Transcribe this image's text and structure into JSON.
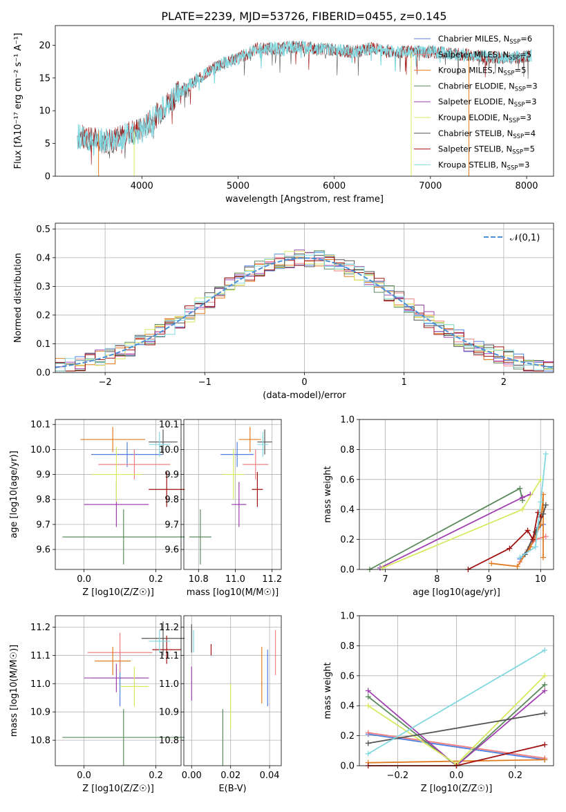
{
  "title": "PLATE=2239, MJD=53726, FIBERID=0455, z=0.145",
  "colors": {
    "chabrier_miles": "#4f7fe0",
    "salpeter_miles": "#f08080",
    "kroupa_miles": "#e07b20",
    "chabrier_elodie": "#5a8a5a",
    "salpeter_elodie": "#a040b0",
    "kroupa_elodie": "#d8e860",
    "chabrier_stelib": "#555555",
    "salpeter_stelib": "#a01010",
    "kroupa_stelib": "#80d8e0",
    "normal": "#4a90d9",
    "grid": "#b0b0b0"
  },
  "chart_data": [
    {
      "type": "line",
      "id": "spectrum",
      "title": "PLATE=2239, MJD=53726, FIBERID=0455, z=0.145",
      "xlabel": "wavelength [Angstrom, rest frame]",
      "ylabel": "Flux [fλ10⁻¹⁷ erg cm⁻² s⁻¹ A⁻¹]",
      "xlim": [
        3100,
        8280
      ],
      "ylim": [
        0,
        23
      ],
      "xticks": [
        4000,
        5000,
        6000,
        7000,
        8000
      ],
      "yticks": [
        0,
        5,
        10,
        15,
        20
      ],
      "grid": false,
      "legend_position": "top-right",
      "legend": [
        "Chabrier MILES, N_SSP=6",
        "Salpeter MILES, N_SSP=5",
        "Kroupa MILES, N_SSP=5",
        "Chabrier ELODIE, N_SSP=3",
        "Salpeter ELODIE, N_SSP=3",
        "Kroupa ELODIE, N_SSP=3",
        "Chabrier STELIB, N_SSP=4",
        "Salpeter STELIB, N_SSP=5",
        "Kroupa STELIB, N_SSP=3"
      ],
      "continuum": [
        [
          3330,
          6
        ],
        [
          3500,
          5.5
        ],
        [
          3700,
          5.3
        ],
        [
          3850,
          6.5
        ],
        [
          4000,
          7
        ],
        [
          4200,
          10
        ],
        [
          4400,
          13
        ],
        [
          4600,
          15
        ],
        [
          4800,
          17
        ],
        [
          5000,
          18
        ],
        [
          5200,
          19.5
        ],
        [
          5400,
          19.5
        ],
        [
          5600,
          19.8
        ],
        [
          5800,
          19.5
        ],
        [
          6000,
          19.3
        ],
        [
          6200,
          19
        ],
        [
          6400,
          19.5
        ],
        [
          6600,
          19
        ],
        [
          6800,
          19
        ],
        [
          7000,
          19
        ],
        [
          7200,
          18.7
        ],
        [
          7400,
          18.5
        ],
        [
          7600,
          18.3
        ],
        [
          7800,
          18
        ],
        [
          8000,
          18.3
        ],
        [
          8050,
          18.5
        ]
      ]
    },
    {
      "type": "histogram",
      "id": "residuals",
      "xlabel": "(data-model)/error",
      "ylabel": "Normed distribution",
      "xlim": [
        -2.5,
        2.5
      ],
      "ylim": [
        0,
        0.52
      ],
      "xticks": [
        -2,
        -1,
        0,
        1,
        2
      ],
      "yticks": [
        0.0,
        0.1,
        0.2,
        0.3,
        0.4,
        0.5
      ],
      "grid": true,
      "legend": "𝒩(0,1)",
      "legend_position": "top-right"
    },
    {
      "type": "scatter",
      "id": "age_vs_z",
      "xlabel": "Z [log10(Z/Z☉)]",
      "ylabel": "age [log10(age/yr)]",
      "xlim": [
        -0.08,
        0.27
      ],
      "ylim": [
        9.52,
        10.12
      ],
      "xticks": [
        0.0,
        0.2
      ],
      "yticks": [
        9.6,
        9.7,
        9.8,
        9.9,
        10.0,
        10.1
      ],
      "grid": true,
      "points": [
        {
          "series": "chabrier_miles",
          "x": 0.12,
          "y": 9.98,
          "xerr": 0.1,
          "yerr": 0.05
        },
        {
          "series": "salpeter_miles",
          "x": 0.14,
          "y": 9.94,
          "xerr": 0.1,
          "yerr": 0.06
        },
        {
          "series": "kroupa_miles",
          "x": 0.08,
          "y": 10.04,
          "xerr": 0.09,
          "yerr": 0.05
        },
        {
          "series": "chabrier_elodie",
          "x": 0.11,
          "y": 9.65,
          "xerr": 0.17,
          "yerr": 0.11
        },
        {
          "series": "salpeter_elodie",
          "x": 0.09,
          "y": 9.78,
          "xerr": 0.09,
          "yerr": 0.09
        },
        {
          "series": "kroupa_elodie",
          "x": 0.09,
          "y": 9.9,
          "xerr": 0.07,
          "yerr": 0.11
        },
        {
          "series": "chabrier_stelib",
          "x": 0.22,
          "y": 10.03,
          "xerr": 0.04,
          "yerr": 0.05
        },
        {
          "series": "salpeter_stelib",
          "x": 0.23,
          "y": 9.84,
          "xerr": 0.05,
          "yerr": 0.07
        },
        {
          "series": "kroupa_stelib",
          "x": 0.21,
          "y": 10.02,
          "xerr": 0.03,
          "yerr": 0.05
        }
      ]
    },
    {
      "type": "scatter",
      "id": "age_vs_mass",
      "xlabel": "mass [log10(M/M☉)]",
      "ylabel": "",
      "xlim": [
        10.72,
        11.25
      ],
      "ylim": [
        9.52,
        10.12
      ],
      "xticks": [
        10.8,
        11.0,
        11.2
      ],
      "yticks": [
        9.6,
        9.7,
        9.8,
        9.9,
        10.0,
        10.1
      ],
      "grid": true,
      "points": [
        {
          "series": "chabrier_miles",
          "x": 11.01,
          "y": 9.98,
          "xerr": 0.09,
          "yerr": 0.05
        },
        {
          "series": "salpeter_miles",
          "x": 11.11,
          "y": 9.94,
          "xerr": 0.07,
          "yerr": 0.06
        },
        {
          "series": "kroupa_miles",
          "x": 11.08,
          "y": 10.04,
          "xerr": 0.06,
          "yerr": 0.05
        },
        {
          "series": "chabrier_elodie",
          "x": 10.81,
          "y": 9.65,
          "xerr": 0.06,
          "yerr": 0.11
        },
        {
          "series": "salpeter_elodie",
          "x": 11.02,
          "y": 9.78,
          "xerr": 0.04,
          "yerr": 0.09
        },
        {
          "series": "kroupa_elodie",
          "x": 10.99,
          "y": 9.9,
          "xerr": 0.06,
          "yerr": 0.1
        },
        {
          "series": "chabrier_stelib",
          "x": 11.16,
          "y": 10.03,
          "xerr": 0.04,
          "yerr": 0.05
        },
        {
          "series": "salpeter_stelib",
          "x": 11.12,
          "y": 9.84,
          "xerr": 0.03,
          "yerr": 0.07
        },
        {
          "series": "kroupa_stelib",
          "x": 11.15,
          "y": 10.02,
          "xerr": 0.03,
          "yerr": 0.05
        }
      ]
    },
    {
      "type": "line",
      "id": "massweight_vs_age",
      "xlabel": "age [log10(age/yr)]",
      "ylabel": "mass weight",
      "xlim": [
        6.5,
        10.25
      ],
      "ylim": [
        0.0,
        1.0
      ],
      "xticks": [
        7,
        8,
        9,
        10
      ],
      "yticks": [
        0.0,
        0.2,
        0.4,
        0.6,
        0.8,
        1.0
      ],
      "grid": true,
      "series": [
        {
          "series": "chabrier_miles",
          "points": [
            [
              9.6,
              0.07
            ],
            [
              9.8,
              0.15
            ],
            [
              9.95,
              0.28
            ],
            [
              10.05,
              0.3
            ]
          ]
        },
        {
          "series": "salpeter_miles",
          "points": [
            [
              9.6,
              0.05
            ],
            [
              9.75,
              0.13
            ],
            [
              9.9,
              0.2
            ],
            [
              10.1,
              0.22
            ]
          ]
        },
        {
          "series": "kroupa_miles",
          "points": [
            [
              9.05,
              0.04
            ],
            [
              9.55,
              0.02
            ],
            [
              9.8,
              0.15
            ],
            [
              10.0,
              0.3
            ],
            [
              10.05,
              0.5
            ],
            [
              10.05,
              0.08
            ]
          ]
        },
        {
          "series": "chabrier_elodie",
          "points": [
            [
              6.7,
              0.0
            ],
            [
              9.6,
              0.54
            ],
            [
              9.65,
              0.46
            ]
          ]
        },
        {
          "series": "salpeter_elodie",
          "points": [
            [
              6.9,
              0.01
            ],
            [
              9.65,
              0.48
            ],
            [
              9.8,
              0.5
            ]
          ]
        },
        {
          "series": "kroupa_elodie",
          "points": [
            [
              6.95,
              0.01
            ],
            [
              9.65,
              0.4
            ],
            [
              10.0,
              0.6
            ]
          ]
        },
        {
          "series": "chabrier_stelib",
          "points": [
            [
              9.7,
              0.1
            ],
            [
              9.9,
              0.25
            ],
            [
              10.05,
              0.37
            ],
            [
              10.1,
              0.43
            ]
          ]
        },
        {
          "series": "salpeter_stelib",
          "points": [
            [
              8.6,
              0.0
            ],
            [
              9.4,
              0.14
            ],
            [
              9.75,
              0.26
            ],
            [
              9.85,
              0.2
            ],
            [
              9.95,
              0.38
            ],
            [
              10.0,
              0.35
            ]
          ]
        },
        {
          "series": "kroupa_stelib",
          "points": [
            [
              9.6,
              0.08
            ],
            [
              9.9,
              0.15
            ],
            [
              10.0,
              0.45
            ],
            [
              10.1,
              0.77
            ]
          ]
        }
      ]
    },
    {
      "type": "scatter",
      "id": "mass_vs_z",
      "xlabel": "Z [log10(Z/Z☉)]",
      "ylabel": "mass [log10(M/M☉)]",
      "xlim": [
        -0.08,
        0.27
      ],
      "ylim": [
        10.71,
        11.24
      ],
      "xticks": [
        0.0,
        0.2
      ],
      "yticks": [
        10.8,
        10.9,
        11.0,
        11.1,
        11.2
      ],
      "grid": true,
      "points": [
        {
          "series": "chabrier_miles",
          "x": 0.1,
          "y": 11.02,
          "xerr": 0.08,
          "yerr": 0.1
        },
        {
          "series": "salpeter_miles",
          "x": 0.1,
          "y": 11.11,
          "xerr": 0.09,
          "yerr": 0.07
        },
        {
          "series": "kroupa_miles",
          "x": 0.08,
          "y": 11.08,
          "xerr": 0.05,
          "yerr": 0.05
        },
        {
          "series": "chabrier_elodie",
          "x": 0.11,
          "y": 10.81,
          "xerr": 0.17,
          "yerr": 0.1
        },
        {
          "series": "salpeter_elodie",
          "x": 0.09,
          "y": 11.02,
          "xerr": 0.09,
          "yerr": 0.05
        },
        {
          "series": "kroupa_elodie",
          "x": 0.14,
          "y": 10.99,
          "xerr": 0.04,
          "yerr": 0.07
        },
        {
          "series": "chabrier_stelib",
          "x": 0.22,
          "y": 11.16,
          "xerr": 0.06,
          "yerr": 0.06
        },
        {
          "series": "salpeter_stelib",
          "x": 0.23,
          "y": 11.12,
          "xerr": 0.04,
          "yerr": 0.05
        },
        {
          "series": "kroupa_stelib",
          "x": 0.21,
          "y": 11.15,
          "xerr": 0.03,
          "yerr": 0.04
        }
      ]
    },
    {
      "type": "scatter",
      "id": "mass_vs_ebv",
      "xlabel": "E(B-V)",
      "ylabel": "",
      "xlim": [
        -0.004,
        0.046
      ],
      "ylim": [
        10.71,
        11.24
      ],
      "xticks": [
        0.0,
        0.02,
        0.04
      ],
      "yticks": [
        10.8,
        10.9,
        11.0,
        11.1,
        11.2
      ],
      "grid": true,
      "points": [
        {
          "series": "chabrier_miles",
          "x": 0.039,
          "y": 11.02,
          "yerr": 0.1
        },
        {
          "series": "salpeter_miles",
          "x": 0.043,
          "y": 11.11,
          "yerr": 0.08
        },
        {
          "series": "kroupa_miles",
          "x": 0.036,
          "y": 11.03,
          "yerr": 0.1
        },
        {
          "series": "chabrier_elodie",
          "x": 0.016,
          "y": 10.81,
          "yerr": 0.1
        },
        {
          "series": "salpeter_elodie",
          "x": 0.0,
          "y": 11.0,
          "yerr": 0.06
        },
        {
          "series": "kroupa_elodie",
          "x": 0.02,
          "y": 10.92,
          "yerr": 0.08
        },
        {
          "series": "chabrier_stelib",
          "x": 0.0,
          "y": 11.16,
          "yerr": 0.05
        },
        {
          "series": "salpeter_stelib",
          "x": 0.01,
          "y": 11.12,
          "yerr": 0.02
        },
        {
          "series": "kroupa_stelib",
          "x": 0.001,
          "y": 11.15,
          "yerr": 0.04
        }
      ]
    },
    {
      "type": "line",
      "id": "massweight_vs_z",
      "xlabel": "Z [log10(Z/Z☉)]",
      "ylabel": "mass weight",
      "xlim": [
        -0.33,
        0.33
      ],
      "ylim": [
        0.0,
        1.0
      ],
      "xticks": [
        -0.2,
        0.0,
        0.2
      ],
      "yticks": [
        0.0,
        0.2,
        0.4,
        0.6,
        0.8,
        1.0
      ],
      "grid": true,
      "series": [
        {
          "series": "chabrier_miles",
          "points": [
            [
              -0.3,
              0.21
            ],
            [
              0.3,
              0.04
            ]
          ]
        },
        {
          "series": "salpeter_miles",
          "points": [
            [
              -0.3,
              0.22
            ],
            [
              0.3,
              0.05
            ]
          ]
        },
        {
          "series": "kroupa_miles",
          "points": [
            [
              -0.3,
              0.02
            ],
            [
              0.3,
              0.04
            ]
          ]
        },
        {
          "series": "chabrier_elodie",
          "points": [
            [
              -0.3,
              0.46
            ],
            [
              0.0,
              0.0
            ],
            [
              0.3,
              0.54
            ]
          ]
        },
        {
          "series": "salpeter_elodie",
          "points": [
            [
              -0.3,
              0.5
            ],
            [
              0.0,
              0.0
            ],
            [
              0.3,
              0.5
            ]
          ]
        },
        {
          "series": "kroupa_elodie",
          "points": [
            [
              -0.3,
              0.4
            ],
            [
              0.0,
              0.01
            ],
            [
              0.3,
              0.6
            ]
          ]
        },
        {
          "series": "chabrier_stelib",
          "points": [
            [
              -0.3,
              0.15
            ],
            [
              0.3,
              0.35
            ]
          ]
        },
        {
          "series": "salpeter_stelib",
          "points": [
            [
              -0.3,
              0.0
            ],
            [
              0.0,
              0.0
            ],
            [
              0.3,
              0.14
            ]
          ]
        },
        {
          "series": "kroupa_stelib",
          "points": [
            [
              -0.3,
              0.08
            ],
            [
              0.3,
              0.77
            ]
          ]
        }
      ]
    }
  ]
}
